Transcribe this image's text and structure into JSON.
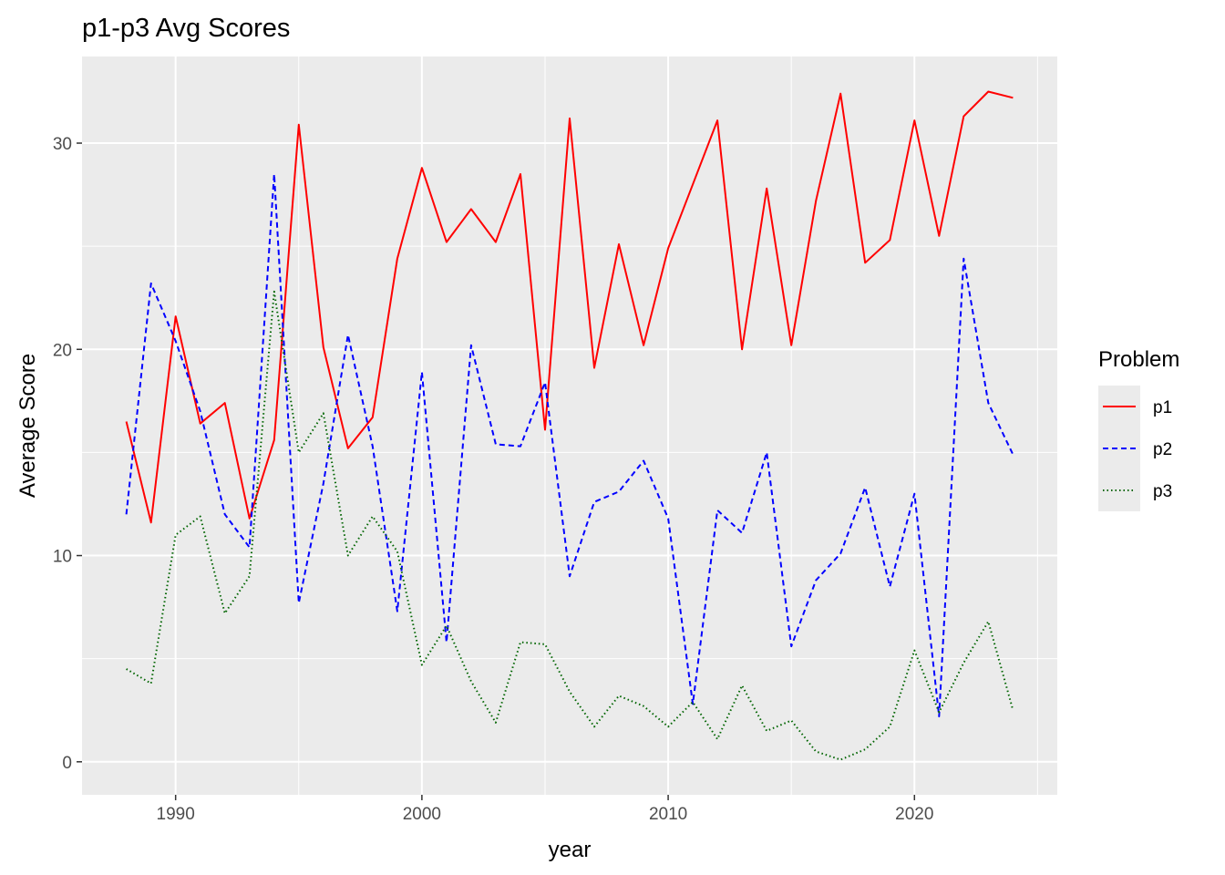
{
  "chart_data": {
    "type": "line",
    "title": "p1-p3 Avg Scores",
    "xlabel": "year",
    "ylabel": "Average Score",
    "xlim": [
      1986.2,
      2025.8
    ],
    "ylim": [
      -1.6,
      34.2
    ],
    "x_ticks": [
      1990,
      2000,
      2010,
      2020
    ],
    "y_ticks": [
      0,
      10,
      20,
      30
    ],
    "grid": true,
    "legend": {
      "title": "Problem",
      "placement": "right"
    },
    "x": [
      1988,
      1989,
      1990,
      1991,
      1992,
      1993,
      1994,
      1995,
      1996,
      1997,
      1998,
      1999,
      2000,
      2001,
      2002,
      2003,
      2004,
      2005,
      2006,
      2007,
      2008,
      2009,
      2010,
      2011,
      2012,
      2013,
      2014,
      2015,
      2016,
      2017,
      2018,
      2019,
      2020,
      2021,
      2022,
      2023,
      2024
    ],
    "series": [
      {
        "name": "p1",
        "color": "#ff0000",
        "dash": "solid",
        "values": [
          16.5,
          11.6,
          21.6,
          16.4,
          17.4,
          11.8,
          15.6,
          30.9,
          20.1,
          15.2,
          16.7,
          24.4,
          28.8,
          25.2,
          26.8,
          25.2,
          28.5,
          16.1,
          31.2,
          19.1,
          25.1,
          20.2,
          24.9,
          28.0,
          31.1,
          20.0,
          27.8,
          20.2,
          27.2,
          32.4,
          24.2,
          25.3,
          31.1,
          25.5,
          31.3,
          32.5,
          32.2
        ]
      },
      {
        "name": "p2",
        "color": "#0000ff",
        "dash": "dashed",
        "values": [
          12.0,
          23.2,
          20.4,
          17.0,
          12.0,
          10.4,
          28.5,
          7.7,
          13.5,
          20.7,
          15.3,
          7.3,
          18.9,
          5.8,
          20.2,
          15.4,
          15.3,
          18.4,
          9.0,
          12.6,
          13.1,
          14.6,
          11.8,
          2.8,
          12.2,
          11.1,
          15.0,
          5.6,
          8.8,
          10.1,
          13.3,
          8.5,
          13.0,
          2.2,
          24.4,
          17.4,
          14.9
        ]
      },
      {
        "name": "p3",
        "color": "#006400",
        "dash": "dotted",
        "values": [
          4.5,
          3.8,
          11.0,
          11.9,
          7.2,
          9.0,
          22.8,
          15.0,
          16.9,
          10.0,
          11.9,
          10.2,
          4.7,
          6.6,
          3.9,
          1.9,
          5.8,
          5.7,
          3.4,
          1.7,
          3.2,
          2.7,
          1.7,
          2.9,
          1.1,
          3.7,
          1.5,
          2.0,
          0.5,
          0.1,
          0.6,
          1.7,
          5.4,
          2.4,
          4.8,
          6.8,
          2.5
        ]
      }
    ]
  }
}
